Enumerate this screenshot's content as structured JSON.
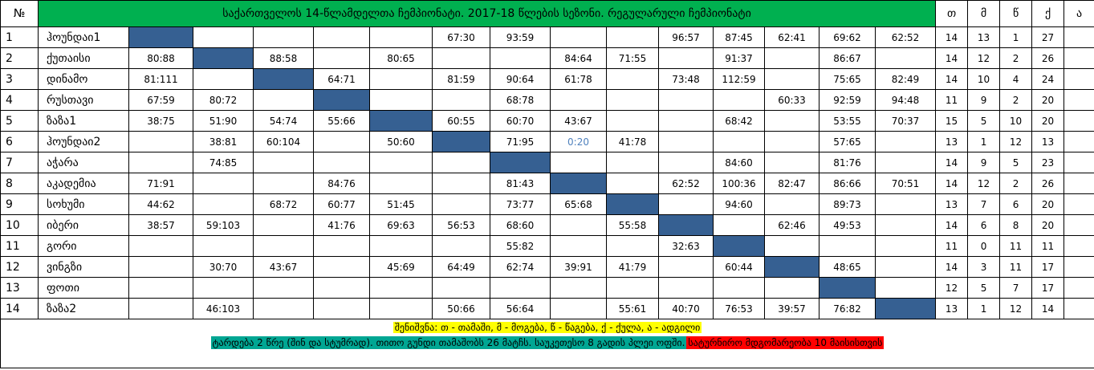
{
  "header": {
    "number": "№",
    "title": "საქართველოს 14-წლამდელთა ჩემპიონატი. 2017-18 წლების სეზონი. რეგულარული ჩემპიონატი",
    "stats": [
      "თ",
      "მ",
      "წ",
      "ქ",
      "ა"
    ]
  },
  "rows": [
    {
      "number": 1,
      "team": "ჰოუნდაი1",
      "results": [
        null,
        null,
        null,
        null,
        null,
        "67:30",
        "93:59",
        null,
        null,
        "96:57",
        "87:45",
        "62:41",
        "69:62",
        "62:52"
      ],
      "stats": [
        14,
        13,
        1,
        27
      ]
    },
    {
      "number": 2,
      "team": "ქუთაისი",
      "results": [
        "80:88",
        null,
        "88:58",
        null,
        "80:65",
        null,
        null,
        "84:64",
        "71:55",
        null,
        "91:37",
        null,
        "86:67",
        null
      ],
      "stats": [
        14,
        12,
        2,
        26
      ]
    },
    {
      "number": 3,
      "team": "დინამო",
      "results": [
        "81:111",
        null,
        null,
        "64:71",
        null,
        "81:59",
        "90:64",
        "61:78",
        null,
        "73:48",
        "112:59",
        null,
        "75:65",
        "82:49"
      ],
      "stats": [
        14,
        10,
        4,
        24
      ]
    },
    {
      "number": 4,
      "team": "რუსთავი",
      "results": [
        "67:59",
        "80:72",
        null,
        null,
        null,
        null,
        "68:78",
        null,
        null,
        null,
        null,
        "60:33",
        "92:59",
        "94:48"
      ],
      "stats": [
        11,
        9,
        2,
        20
      ]
    },
    {
      "number": 5,
      "team": "ზაზა1",
      "results": [
        "38:75",
        "51:90",
        "54:74",
        "55:66",
        null,
        "60:55",
        "60:70",
        "43:67",
        null,
        null,
        "68:42",
        null,
        "53:55",
        "70:37"
      ],
      "stats": [
        15,
        5,
        10,
        20
      ]
    },
    {
      "number": 6,
      "team": "ჰოუნდაი2",
      "results": [
        null,
        "38:81",
        "60:104",
        null,
        "50:60",
        null,
        "71:95",
        "0:20",
        "41:78",
        null,
        null,
        null,
        "57:65",
        null
      ],
      "stats": [
        13,
        1,
        12,
        13
      ],
      "accent_col": 7
    },
    {
      "number": 7,
      "team": "აჭარა",
      "results": [
        null,
        "74:85",
        null,
        null,
        null,
        null,
        null,
        null,
        null,
        null,
        "84:60",
        null,
        "81:76",
        null
      ],
      "stats": [
        14,
        9,
        5,
        23
      ]
    },
    {
      "number": 8,
      "team": "აკადემია",
      "results": [
        "71:91",
        null,
        null,
        "84:76",
        null,
        null,
        "81:43",
        null,
        null,
        "62:52",
        "100:36",
        "82:47",
        "86:66",
        "70:51"
      ],
      "stats": [
        14,
        12,
        2,
        26
      ]
    },
    {
      "number": 9,
      "team": "სოხუმი",
      "results": [
        "44:62",
        null,
        "68:72",
        "60:77",
        "51:45",
        null,
        "73:77",
        "65:68",
        null,
        null,
        "94:60",
        null,
        "89:73",
        null
      ],
      "stats": [
        13,
        7,
        6,
        20
      ]
    },
    {
      "number": 10,
      "team": "იბერი",
      "results": [
        "38:57",
        "59:103",
        null,
        "41:76",
        "69:63",
        "56:53",
        "68:60",
        null,
        "55:58",
        null,
        null,
        "62:46",
        "49:53",
        null
      ],
      "stats": [
        14,
        6,
        8,
        20
      ]
    },
    {
      "number": 11,
      "team": "გორი",
      "results": [
        null,
        null,
        null,
        null,
        null,
        null,
        "55:82",
        null,
        null,
        "32:63",
        null,
        null,
        null,
        null
      ],
      "stats": [
        11,
        0,
        11,
        11
      ]
    },
    {
      "number": 12,
      "team": "ვინგზი",
      "results": [
        null,
        "30:70",
        "43:67",
        null,
        "45:69",
        "64:49",
        "62:74",
        "39:91",
        "41:79",
        null,
        "60:44",
        null,
        "48:65",
        null
      ],
      "stats": [
        14,
        3,
        11,
        17
      ]
    },
    {
      "number": 13,
      "team": "ფოთი",
      "results": [
        null,
        null,
        null,
        null,
        null,
        null,
        null,
        null,
        null,
        null,
        null,
        null,
        null,
        null
      ],
      "stats": [
        12,
        5,
        7,
        17
      ]
    },
    {
      "number": 14,
      "team": "ზაზა2",
      "results": [
        null,
        "46:103",
        null,
        null,
        null,
        "50:66",
        "56:64",
        null,
        "55:61",
        "40:70",
        "76:53",
        "39:57",
        "76:82",
        null
      ],
      "stats": [
        13,
        1,
        12,
        14
      ]
    }
  ],
  "footer": {
    "note": "შენიშვნა: თ - თამაში, მ - მოგება, წ - წაგება, ქ - ქულა, ა - ადგილი",
    "info": "ტარდება 2 წრე (შინ და სტუმრად).  თითო გუნდი თამაშობს 26 მატჩს. საუკეთესო 8 გადის პლეი ოფში.",
    "status": "სატურნირო  მდგომარეობა 10 მაისისთვის"
  }
}
